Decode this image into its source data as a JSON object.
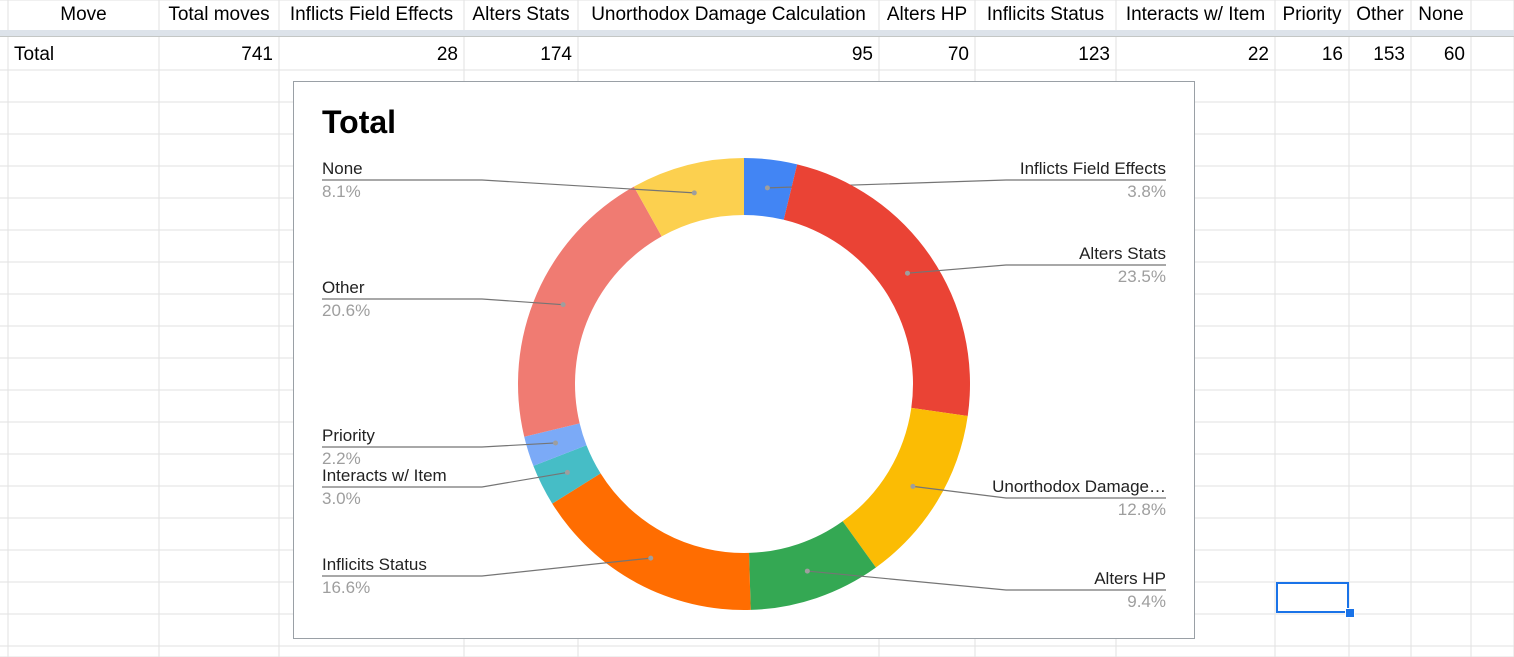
{
  "sheet": {
    "headers": [
      "Move",
      "Total moves",
      "Inflicts Field Effects",
      "Alters Stats",
      "Unorthodox Damage Calculation",
      "Alters HP",
      "Inflicits Status",
      "Interacts w/ Item",
      "Priority",
      "Other",
      "None"
    ],
    "row": {
      "label": "Total",
      "values": [
        "741",
        "28",
        "174",
        "95",
        "70",
        "123",
        "22",
        "16",
        "153",
        "60"
      ]
    }
  },
  "chart_data": {
    "type": "pie",
    "donut": true,
    "title": "Total",
    "legend": "none",
    "slices": [
      {
        "label": "Inflicts Field Effects",
        "display_label": "Inflicts Field Effects",
        "value": 28,
        "percent": "3.8%",
        "color": "#4285f4"
      },
      {
        "label": "Alters Stats",
        "display_label": "Alters Stats",
        "value": 174,
        "percent": "23.5%",
        "color": "#ea4335"
      },
      {
        "label": "Unorthodox Damage Calculation",
        "display_label": "Unorthodox Damage…",
        "value": 95,
        "percent": "12.8%",
        "color": "#fbbc04"
      },
      {
        "label": "Alters HP",
        "display_label": "Alters HP",
        "value": 70,
        "percent": "9.4%",
        "color": "#34a853"
      },
      {
        "label": "Inflicits Status",
        "display_label": "Inflicits Status",
        "value": 123,
        "percent": "16.6%",
        "color": "#ff6d01"
      },
      {
        "label": "Interacts w/ Item",
        "display_label": "Interacts w/ Item",
        "value": 22,
        "percent": "3.0%",
        "color": "#46bdc6"
      },
      {
        "label": "Priority",
        "display_label": "Priority",
        "value": 16,
        "percent": "2.2%",
        "color": "#7baaf7"
      },
      {
        "label": "Other",
        "display_label": "Other",
        "value": 153,
        "percent": "20.6%",
        "color": "#f07b72"
      },
      {
        "label": "None",
        "display_label": "None",
        "value": 60,
        "percent": "8.1%",
        "color": "#fcd04f"
      }
    ]
  }
}
